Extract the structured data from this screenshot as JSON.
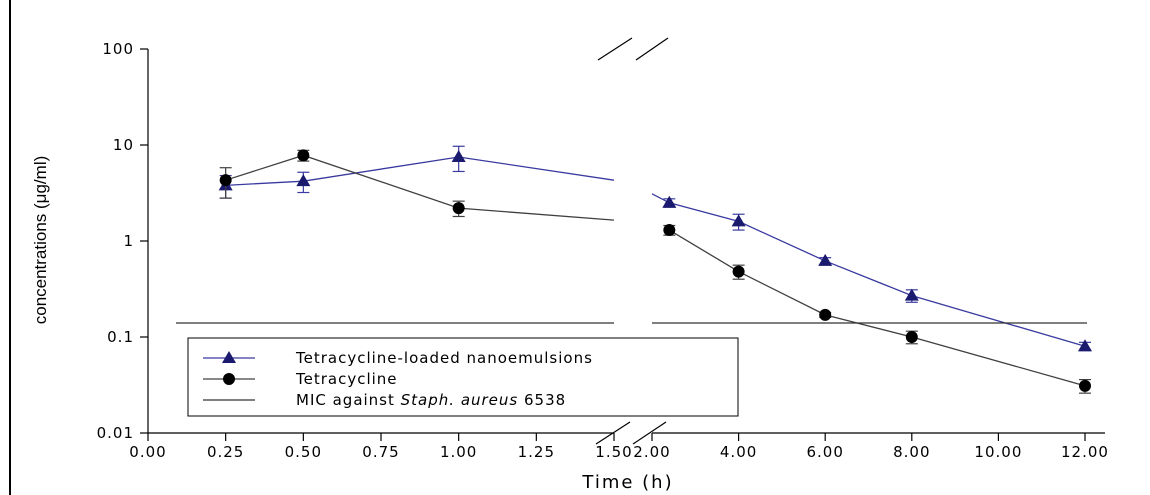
{
  "chart_data": {
    "type": "line",
    "xlabel": "Time (h)",
    "ylabel": "concentrations (μg/ml)",
    "yscale": "log",
    "ylim": [
      0.01,
      100
    ],
    "y_ticks": [
      "100",
      "10",
      "1",
      "0.1",
      "0.01"
    ],
    "x_break": true,
    "segment_left": {
      "xlim": [
        0,
        1.5
      ],
      "x_ticks": [
        "0.00",
        "0.25",
        "0.50",
        "0.75",
        "1.00",
        "1.25",
        "1.50"
      ]
    },
    "segment_right": {
      "xlim": [
        2,
        12
      ],
      "x_ticks": [
        "2.00",
        "4.00",
        "6.00",
        "8.00",
        "10.00",
        "12.00"
      ]
    },
    "series": [
      {
        "name": "Tetracycline-loaded nanoemulsions",
        "color": "#3a3aa0",
        "marker": "triangle",
        "left": {
          "x": [
            0.25,
            0.5,
            1.0,
            1.5
          ],
          "y": [
            3.8,
            4.2,
            7.5,
            4.3
          ],
          "err": [
            1.0,
            1.0,
            2.2,
            0
          ]
        },
        "right": {
          "x": [
            2.0,
            2.4,
            4.0,
            6.0,
            8.0,
            12.0
          ],
          "y": [
            3.1,
            2.5,
            1.6,
            0.62,
            0.27,
            0.08
          ],
          "err": [
            0,
            0.25,
            0.3,
            0.05,
            0.04,
            0.008
          ]
        }
      },
      {
        "name": "Tetracycline",
        "color": "#404040",
        "marker": "circle",
        "left": {
          "x": [
            0.25,
            0.5,
            1.0,
            1.5
          ],
          "y": [
            4.3,
            7.8,
            2.2,
            1.65
          ],
          "err": [
            1.5,
            1.0,
            0.4,
            0
          ]
        },
        "right": {
          "x": [
            2.4,
            4.0,
            6.0,
            8.0,
            12.0
          ],
          "y": [
            1.3,
            0.48,
            0.17,
            0.1,
            0.031
          ],
          "err": [
            0.15,
            0.08,
            0.01,
            0.015,
            0.005
          ]
        }
      },
      {
        "name": "MIC against Staph. aureus 6538",
        "color": "#333333",
        "marker": "none",
        "value": 0.14
      }
    ],
    "legend": {
      "placement": "bottom-left",
      "items": [
        {
          "text": "Tetracycline-loaded nanoemulsions"
        },
        {
          "text": "Tetracycline"
        },
        {
          "prefix": "MIC against ",
          "italic": "Staph. aureus",
          "suffix": " 6538"
        }
      ]
    }
  }
}
